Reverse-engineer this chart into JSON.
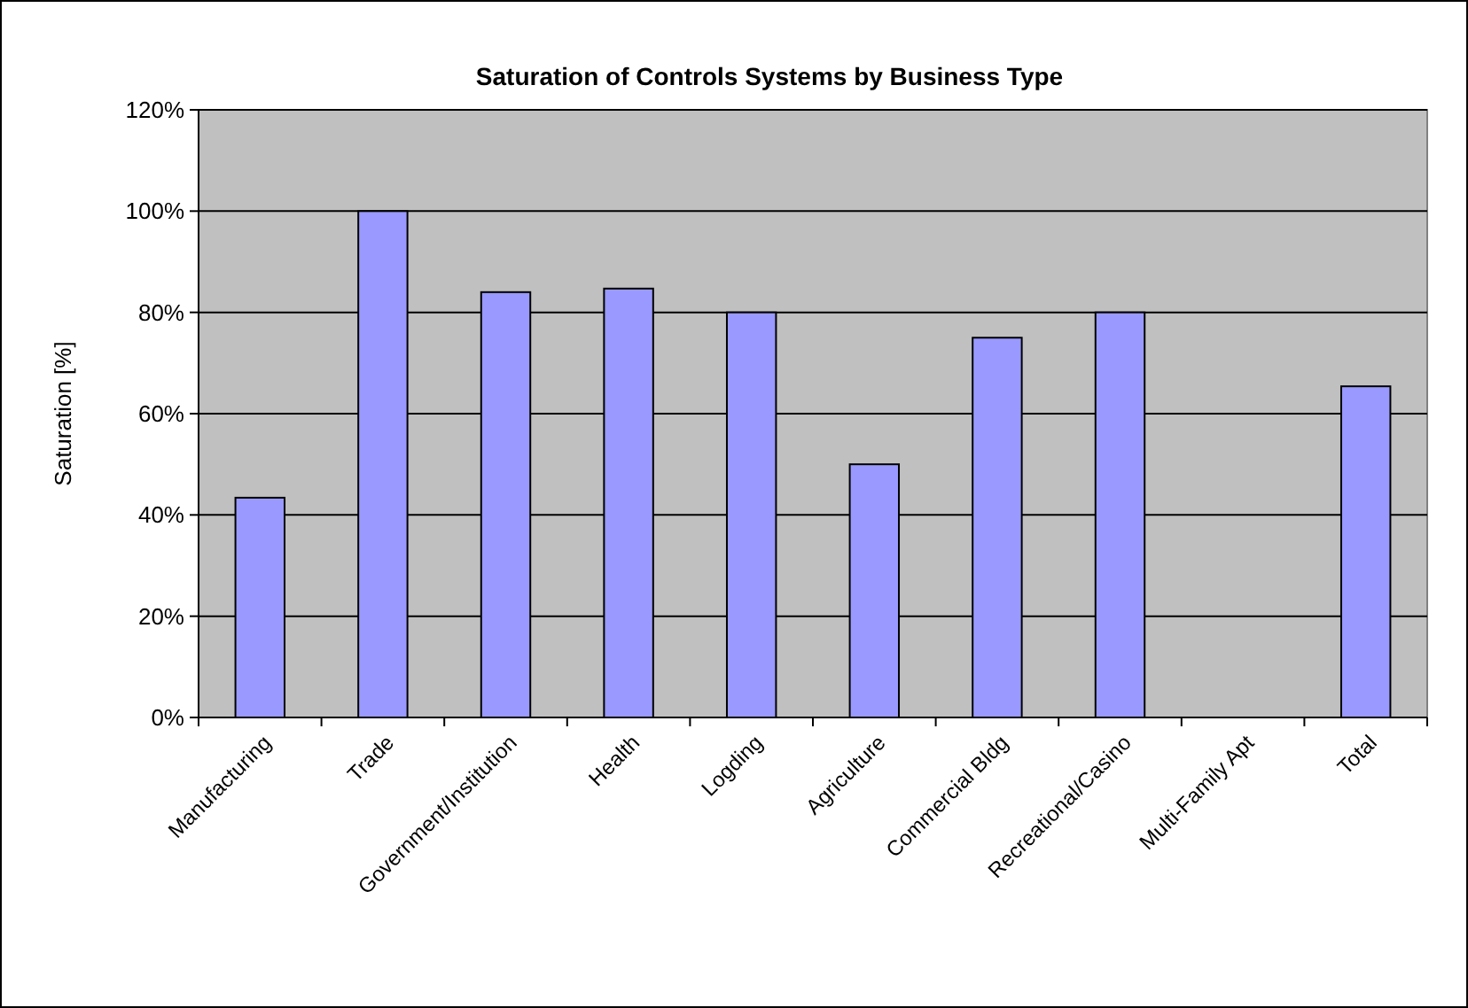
{
  "chart_data": {
    "type": "bar",
    "title": "Saturation of Controls Systems by Business Type",
    "ylabel": "Saturation [%]",
    "categories": [
      "Manufacturing",
      "Trade",
      "Government/Institution",
      "Health",
      "Logding",
      "Agriculture",
      "Commercial Bldg",
      "Recreational/Casino",
      "Multi-Family Apt",
      "Total"
    ],
    "values": [
      43.4,
      100,
      84,
      84.7,
      80,
      50,
      75,
      80,
      0,
      65.4
    ],
    "color": "#9999ff",
    "ylim": [
      0,
      120
    ],
    "yticks": [
      {
        "value": 0,
        "label": "0%"
      },
      {
        "value": 20,
        "label": "20%"
      },
      {
        "value": 40,
        "label": "40%"
      },
      {
        "value": 60,
        "label": "60%"
      },
      {
        "value": 80,
        "label": "80%"
      },
      {
        "value": 100,
        "label": "100%"
      },
      {
        "value": 120,
        "label": "120%"
      }
    ],
    "grid": "y"
  }
}
